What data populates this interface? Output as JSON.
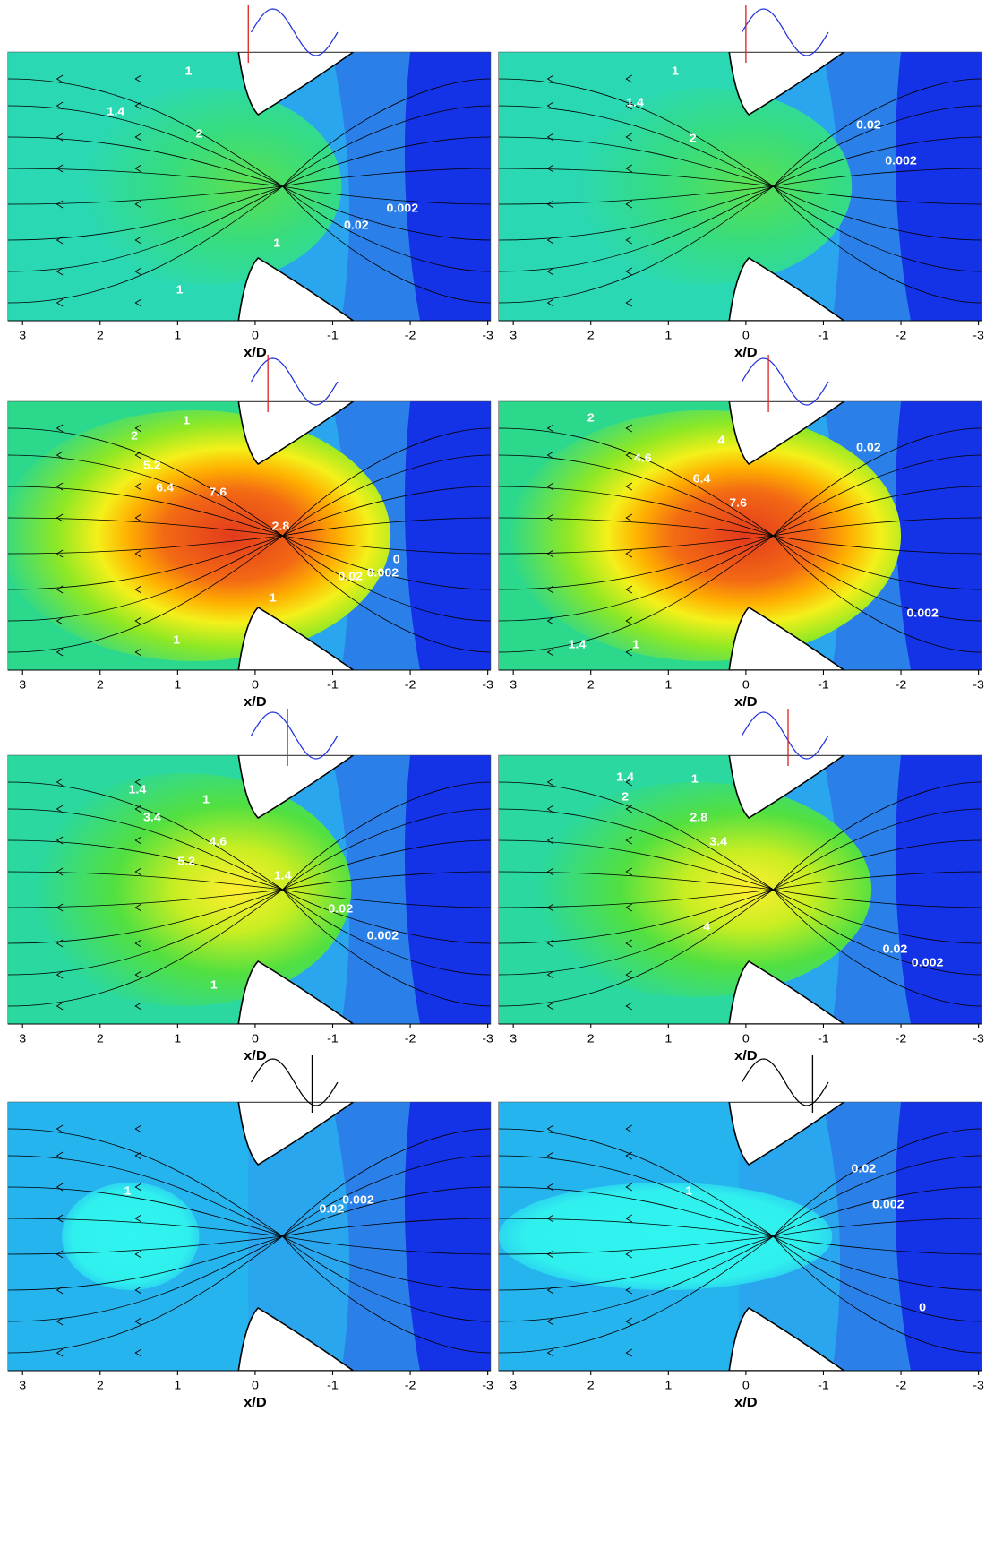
{
  "panels": [
    {
      "contour_labels": [
        "1",
        "1.4",
        "2",
        "1",
        "0.02",
        "0.002",
        "1"
      ],
      "x_ticks": [
        3,
        2,
        1,
        0,
        -1,
        -2,
        -3
      ],
      "x_label": "x/D"
    },
    {
      "contour_labels": [
        "1",
        "1.4",
        "2",
        "0.02",
        "0.002"
      ],
      "x_ticks": [
        3,
        2,
        1,
        0,
        -1,
        -2,
        -3
      ],
      "x_label": "x/D"
    },
    {
      "contour_labels": [
        "1",
        "2",
        "5.2",
        "6.4",
        "7.6",
        "2.8",
        "0.02",
        "0.002",
        "0",
        "1",
        "1"
      ],
      "x_ticks": [
        3,
        2,
        1,
        0,
        -1,
        -2,
        -3
      ],
      "x_label": "x/D"
    },
    {
      "contour_labels": [
        "2",
        "4.6",
        "4",
        "6.4",
        "7.6",
        "0.02",
        "0.002",
        "1.4",
        "1"
      ],
      "x_ticks": [
        3,
        2,
        1,
        0,
        -1,
        -2,
        -3
      ],
      "x_label": "x/D"
    },
    {
      "contour_labels": [
        "1.4",
        "1",
        "3.4",
        "4.6",
        "5.2",
        "1.4",
        "0.02",
        "0.002",
        "1"
      ],
      "x_ticks": [
        3,
        2,
        1,
        0,
        -1,
        -2,
        -3
      ],
      "x_label": "x/D"
    },
    {
      "contour_labels": [
        "1.4",
        "1",
        "2",
        "2.8",
        "3.4",
        "4",
        "0.02",
        "0.002"
      ],
      "x_ticks": [
        3,
        2,
        1,
        0,
        -1,
        -2,
        -3
      ],
      "x_label": "x/D"
    },
    {
      "contour_labels": [
        "1",
        "0.02",
        "0.002"
      ],
      "x_ticks": [
        3,
        2,
        1,
        0,
        -1,
        -2,
        -3
      ],
      "x_label": "x/D"
    },
    {
      "contour_labels": [
        "1",
        "0.02",
        "0.002",
        "0"
      ],
      "x_ticks": [
        3,
        2,
        1,
        0,
        -1,
        -2,
        -3
      ],
      "x_label": "x/D"
    }
  ]
}
